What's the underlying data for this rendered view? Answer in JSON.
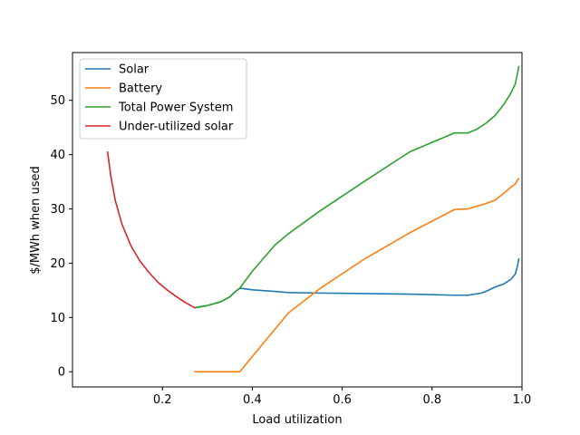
{
  "chart_data": {
    "type": "line",
    "title": "",
    "xlabel": "Load utilization",
    "ylabel": "$/MWh when used",
    "xlim": [
      0.0,
      1.0
    ],
    "ylim": [
      -2.8,
      58.8
    ],
    "xticks": [
      0.2,
      0.4,
      0.6,
      0.8,
      1.0
    ],
    "xtick_labels": [
      "0.2",
      "0.4",
      "0.6",
      "0.8",
      "1.0"
    ],
    "yticks": [
      0,
      10,
      20,
      30,
      40,
      50
    ],
    "ytick_labels": [
      "0",
      "10",
      "20",
      "30",
      "40",
      "50"
    ],
    "grid": false,
    "legend_position": "top-left",
    "series": [
      {
        "name": "Solar",
        "color": "#1f77b4",
        "x": [
          0.272,
          0.3,
          0.33,
          0.35,
          0.36,
          0.372,
          0.4,
          0.45,
          0.48,
          0.55,
          0.65,
          0.75,
          0.85,
          0.88,
          0.91,
          0.925,
          0.94,
          0.96,
          0.975,
          0.985,
          0.99,
          0.993
        ],
        "y": [
          11.8,
          12.2,
          12.9,
          13.8,
          14.6,
          15.4,
          15.1,
          14.8,
          14.6,
          14.5,
          14.4,
          14.3,
          14.1,
          14.1,
          14.5,
          15.0,
          15.6,
          16.2,
          17.0,
          18.0,
          19.5,
          20.8
        ]
      },
      {
        "name": "Battery",
        "color": "#ff7f0e",
        "x": [
          0.272,
          0.3,
          0.372,
          0.48,
          0.55,
          0.65,
          0.75,
          0.85,
          0.88,
          0.9,
          0.92,
          0.94,
          0.96,
          0.975,
          0.985,
          0.99,
          0.993
        ],
        "y": [
          0.0,
          0.0,
          0.0,
          10.8,
          15.3,
          20.8,
          25.6,
          29.9,
          30.0,
          30.5,
          31.0,
          31.6,
          32.9,
          34.0,
          34.6,
          35.3,
          35.6
        ]
      },
      {
        "name": "Total Power System",
        "color": "#2ca02c",
        "x": [
          0.272,
          0.3,
          0.33,
          0.35,
          0.36,
          0.372,
          0.4,
          0.45,
          0.48,
          0.55,
          0.65,
          0.75,
          0.85,
          0.88,
          0.9,
          0.92,
          0.94,
          0.96,
          0.975,
          0.985,
          0.99,
          0.993
        ],
        "y": [
          11.8,
          12.2,
          12.9,
          13.8,
          14.6,
          15.4,
          18.5,
          23.3,
          25.4,
          29.6,
          35.1,
          40.5,
          44.0,
          44.0,
          44.7,
          45.8,
          47.2,
          49.3,
          51.3,
          53.0,
          55.0,
          56.2
        ]
      },
      {
        "name": "Under-utilized solar",
        "color": "#d62728",
        "x": [
          0.078,
          0.085,
          0.095,
          0.11,
          0.13,
          0.15,
          0.17,
          0.19,
          0.21,
          0.23,
          0.25,
          0.272
        ],
        "y": [
          40.5,
          36.2,
          31.6,
          27.2,
          23.2,
          20.4,
          18.3,
          16.5,
          15.1,
          13.9,
          12.8,
          11.8
        ]
      }
    ]
  }
}
